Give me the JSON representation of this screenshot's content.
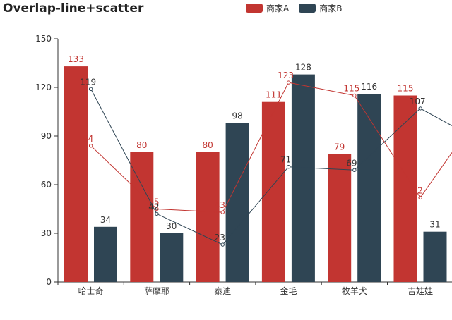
{
  "chart_data": {
    "type": "bar",
    "title": "Overlap-line+scatter",
    "categories": [
      "哈士奇",
      "萨摩耶",
      "泰迪",
      "金毛",
      "牧羊犬",
      "吉娃娃"
    ],
    "ylim": [
      0,
      150
    ],
    "yticks": [
      0,
      30,
      60,
      90,
      120,
      150
    ],
    "grid": false,
    "legend_position": "top-center",
    "series": [
      {
        "name": "商家A",
        "type": "bar",
        "color": "#c23531",
        "values": [
          133,
          80,
          80,
          111,
          79,
          115
        ]
      },
      {
        "name": "商家B",
        "type": "bar",
        "color": "#2f4554",
        "values": [
          34,
          30,
          98,
          128,
          116,
          31
        ]
      }
    ],
    "overlay_series": [
      {
        "type": "line+scatter",
        "color": "#c23531",
        "values": [
          84,
          45,
          43,
          123,
          115,
          52
        ]
      },
      {
        "type": "line+scatter",
        "color": "#2f4554",
        "values": [
          119,
          42,
          23,
          71,
          69,
          107
        ]
      }
    ]
  }
}
